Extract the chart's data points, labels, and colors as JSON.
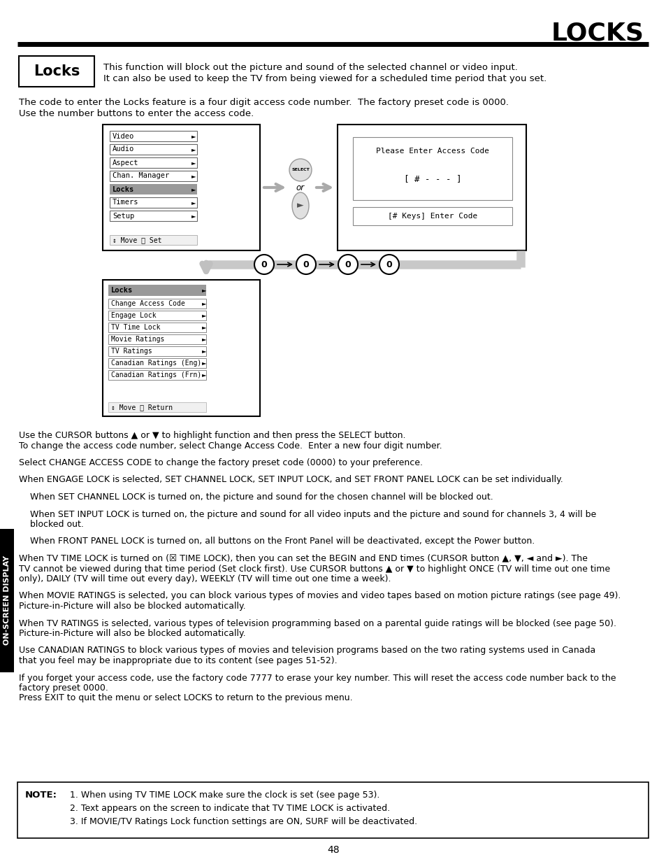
{
  "title": "LOCKS",
  "bg_color": "#ffffff",
  "text_color": "#000000",
  "page_number": "48",
  "locks_box_label": "Locks",
  "locks_desc_line1": "This function will block out the picture and sound of the selected channel or video input.",
  "locks_desc_line2": "It can also be used to keep the TV from being viewed for a scheduled time period that you set.",
  "intro_line1": "The code to enter the Locks feature is a four digit access code number.  The factory preset code is 0000.",
  "intro_line2": "Use the number buttons to enter the access code.",
  "menu_items_left": [
    "Video",
    "Audio",
    "Aspect",
    "Chan. Manager",
    "Locks",
    "Timers",
    "Setup"
  ],
  "menu_bottom_left": "↕ Move Ⓜ Set",
  "access_code_title": "Please Enter Access Code",
  "access_code_display": "[ # - - - ]",
  "access_code_hint": "[# Keys] Enter Code",
  "locks_menu_title": "Locks",
  "locks_menu_items": [
    "Change Access Code",
    "Engage Lock",
    "TV Time Lock",
    "Movie Ratings",
    "TV Ratings",
    "Canadian Ratings (Eng)",
    "Canadian Ratings (Frn)"
  ],
  "locks_menu_bottom": "↕ Move Ⓜ Return",
  "body_paragraphs": [
    "Use the CURSOR buttons ▲ or ▼ to highlight function and then press the SELECT button.\nTo change the access code number, select Change Access Code.  Enter a new four digit number.",
    "Select CHANGE ACCESS CODE to change the factory preset code (0000) to your preference.",
    "When ENGAGE LOCK is selected, SET CHANNEL LOCK, SET INPUT LOCK, and SET FRONT PANEL LOCK can be set individually.",
    "    When SET CHANNEL LOCK is turned on, the picture and sound for the chosen channel will be blocked out.",
    "    When SET INPUT LOCK is turned on, the picture and sound for all video inputs and the picture and sound for channels 3, 4 will be\n    blocked out.",
    "    When FRONT PANEL LOCK is turned on, all buttons on the Front Panel will be deactivated, except the Power button.",
    "When TV TIME LOCK is turned on (☒ TIME LOCK), then you can set the BEGIN and END times (CURSOR button ▲, ▼, ◄ and ►). The\nTV cannot be viewed during that time period (Set clock first). Use CURSOR buttons ▲ or ▼ to highlight ONCE (TV will time out one time\nonly), DAILY (TV will time out every day), WEEKLY (TV will time out one time a week).",
    "When MOVIE RATINGS is selected, you can block various types of movies and video tapes based on motion picture ratings (see page 49).\nPicture-in-Picture will also be blocked automatically.",
    "When TV RATINGS is selected, various types of television programming based on a parental guide ratings will be blocked (see page 50).\nPicture-in-Picture will also be blocked automatically.",
    "Use CANADIAN RATINGS to block various types of movies and television programs based on the two rating systems used in Canada\nthat you feel may be inappropriate due to its content (see pages 51-52).",
    "If you forget your access code, use the factory code 7777 to erase your key number. This will reset the access code number back to the\nfactory preset 0000.\nPress EXIT to quit the menu or select LOCKS to return to the previous menu."
  ],
  "note_label": "NOTE:",
  "note_lines": [
    "1. When using TV TIME LOCK make sure the clock is set (see page 53).",
    "2. Text appears on the screen to indicate that TV TIME LOCK is activated.",
    "3. If MOVIE/TV Ratings Lock function settings are ON, SURF will be deactivated."
  ],
  "sidebar_text": "ON-SCREEN DISPLAY"
}
